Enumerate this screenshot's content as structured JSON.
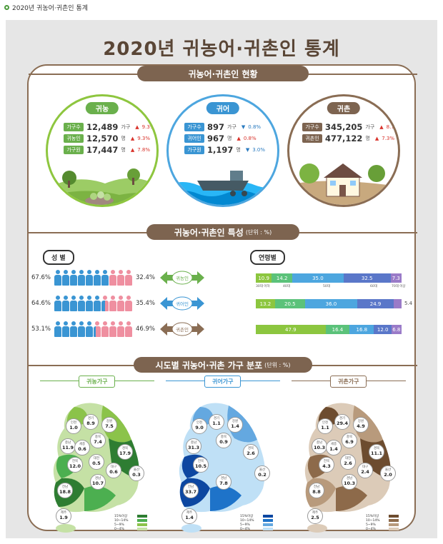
{
  "header": {
    "breadcrumb": "2020년 귀농어·귀촌인 통계"
  },
  "title": "2020년 귀농어·귀촌인 통계",
  "sections": {
    "status": "귀농어·귀촌인 현황",
    "traits": "귀농어·귀촌인 특성",
    "traits_unit": "(단위 : %)",
    "distribution": "시도별 귀농어·귀촌 가구 분포",
    "distribution_unit": "(단위 : %)"
  },
  "circles": [
    {
      "title": "귀농",
      "rows": [
        {
          "tag": "가구수",
          "value": "12,489",
          "unit": "가구",
          "change": "9.3%",
          "dir": "up"
        },
        {
          "tag": "귀농인",
          "value": "12,570",
          "unit": "명",
          "change": "9.3%",
          "dir": "up"
        },
        {
          "tag": "가구원",
          "value": "17,447",
          "unit": "명",
          "change": "7.8%",
          "dir": "up"
        }
      ]
    },
    {
      "title": "귀어",
      "rows": [
        {
          "tag": "가구수",
          "value": "897",
          "unit": "가구",
          "change": "0.8%",
          "dir": "down"
        },
        {
          "tag": "귀어인",
          "value": "967",
          "unit": "명",
          "change": "0.8%",
          "dir": "up"
        },
        {
          "tag": "가구원",
          "value": "1,197",
          "unit": "명",
          "change": "3.0%",
          "dir": "down"
        }
      ]
    },
    {
      "title": "귀촌",
      "rows": [
        {
          "tag": "가구수",
          "value": "345,205",
          "unit": "가구",
          "change": "8.7%",
          "dir": "up"
        },
        {
          "tag": "귀촌인",
          "value": "477,122",
          "unit": "명",
          "change": "7.3%",
          "dir": "up"
        }
      ]
    }
  ],
  "traits": {
    "gender_label": "성 별",
    "age_label": "연령별",
    "rows": [
      {
        "badge": "귀농인",
        "male": "67.6%",
        "female": "32.4%",
        "male_count": 7,
        "female_count": 3
      },
      {
        "badge": "귀어인",
        "male": "64.6%",
        "female": "35.4%",
        "male_count": 6.5,
        "female_count": 3.5
      },
      {
        "badge": "귀촌인",
        "male": "53.1%",
        "female": "46.9%",
        "male_count": 5.3,
        "female_count": 4.7
      }
    ]
  },
  "chart_data": [
    {
      "type": "bar",
      "title": "연령별",
      "categories": [
        "30대 이하",
        "40대",
        "50대",
        "60대",
        "70대 이상"
      ],
      "series": [
        {
          "name": "귀농인",
          "values": [
            10.9,
            14.2,
            35.0,
            32.5,
            7.3
          ]
        },
        {
          "name": "귀어인",
          "values": [
            13.2,
            20.5,
            36.0,
            24.9,
            5.4
          ]
        },
        {
          "name": "귀촌인",
          "values": [
            47.9,
            16.4,
            16.8,
            12.0,
            6.8
          ]
        }
      ],
      "colors": [
        "#8cc63f",
        "#5bc27a",
        "#4da6df",
        "#5a77c9",
        "#9a7bc8"
      ]
    }
  ],
  "age_labels": [
    "30대 이하",
    "40대",
    "50대",
    "60대",
    "70대 이상"
  ],
  "maps": [
    {
      "tag": "귀농가구",
      "regions": [
        {
          "name": "인천",
          "value": "1.0"
        },
        {
          "name": "경기",
          "value": "8.9"
        },
        {
          "name": "강원",
          "value": "7.5"
        },
        {
          "name": "충북",
          "value": "7.4"
        },
        {
          "name": "충남",
          "value": "11.9"
        },
        {
          "name": "세종",
          "value": "0.6"
        },
        {
          "name": "경북",
          "value": "17.9"
        },
        {
          "name": "대전",
          "value": "0.5"
        },
        {
          "name": "전북",
          "value": "12.0"
        },
        {
          "name": "대구",
          "value": "0.6"
        },
        {
          "name": "울산",
          "value": "0.3"
        },
        {
          "name": "경남",
          "value": "10.7"
        },
        {
          "name": "전남",
          "value": "18.8"
        },
        {
          "name": "제주",
          "value": "1.9"
        }
      ],
      "legend": [
        "15%이상",
        "10~14%",
        "5~9%",
        "0~4%"
      ],
      "legend_colors": [
        "#2e7d32",
        "#4caf50",
        "#8bc34a",
        "#c5e1a5"
      ]
    },
    {
      "tag": "귀어가구",
      "regions": [
        {
          "name": "인천",
          "value": "9.0"
        },
        {
          "name": "경기",
          "value": "1.1"
        },
        {
          "name": "강원",
          "value": "1.4"
        },
        {
          "name": "충북",
          "value": "0.9"
        },
        {
          "name": "충남",
          "value": "31.3"
        },
        {
          "name": "경북",
          "value": "2.6"
        },
        {
          "name": "전북",
          "value": "10.5"
        },
        {
          "name": "울산",
          "value": "0.2"
        },
        {
          "name": "경남",
          "value": "7.8"
        },
        {
          "name": "전남",
          "value": "33.7"
        },
        {
          "name": "제주",
          "value": "1.4"
        }
      ],
      "legend": [
        "15%이상",
        "10~14%",
        "5~9%",
        "0~4%"
      ],
      "legend_colors": [
        "#0d47a1",
        "#1e73c9",
        "#64a8e0",
        "#bfe0f6"
      ]
    },
    {
      "tag": "귀촌가구",
      "regions": [
        {
          "name": "인천",
          "value": "1.1"
        },
        {
          "name": "경기",
          "value": "29.4"
        },
        {
          "name": "강원",
          "value": "4.9"
        },
        {
          "name": "충북",
          "value": "6.9"
        },
        {
          "name": "충남",
          "value": "10.3"
        },
        {
          "name": "세종",
          "value": "1.4"
        },
        {
          "name": "경북",
          "value": "11.1"
        },
        {
          "name": "대전",
          "value": "2.6"
        },
        {
          "name": "전북",
          "value": "4.3"
        },
        {
          "name": "대구",
          "value": "2.4"
        },
        {
          "name": "울산",
          "value": "2.0"
        },
        {
          "name": "경남",
          "value": "10.3"
        },
        {
          "name": "전남",
          "value": "8.8"
        },
        {
          "name": "제주",
          "value": "2.5"
        }
      ],
      "legend": [
        "15%이상",
        "10~14%",
        "5~9%",
        "0~4%"
      ],
      "legend_colors": [
        "#6d4c2f",
        "#8d6a4a",
        "#b89a7c",
        "#dccbb8"
      ]
    }
  ]
}
